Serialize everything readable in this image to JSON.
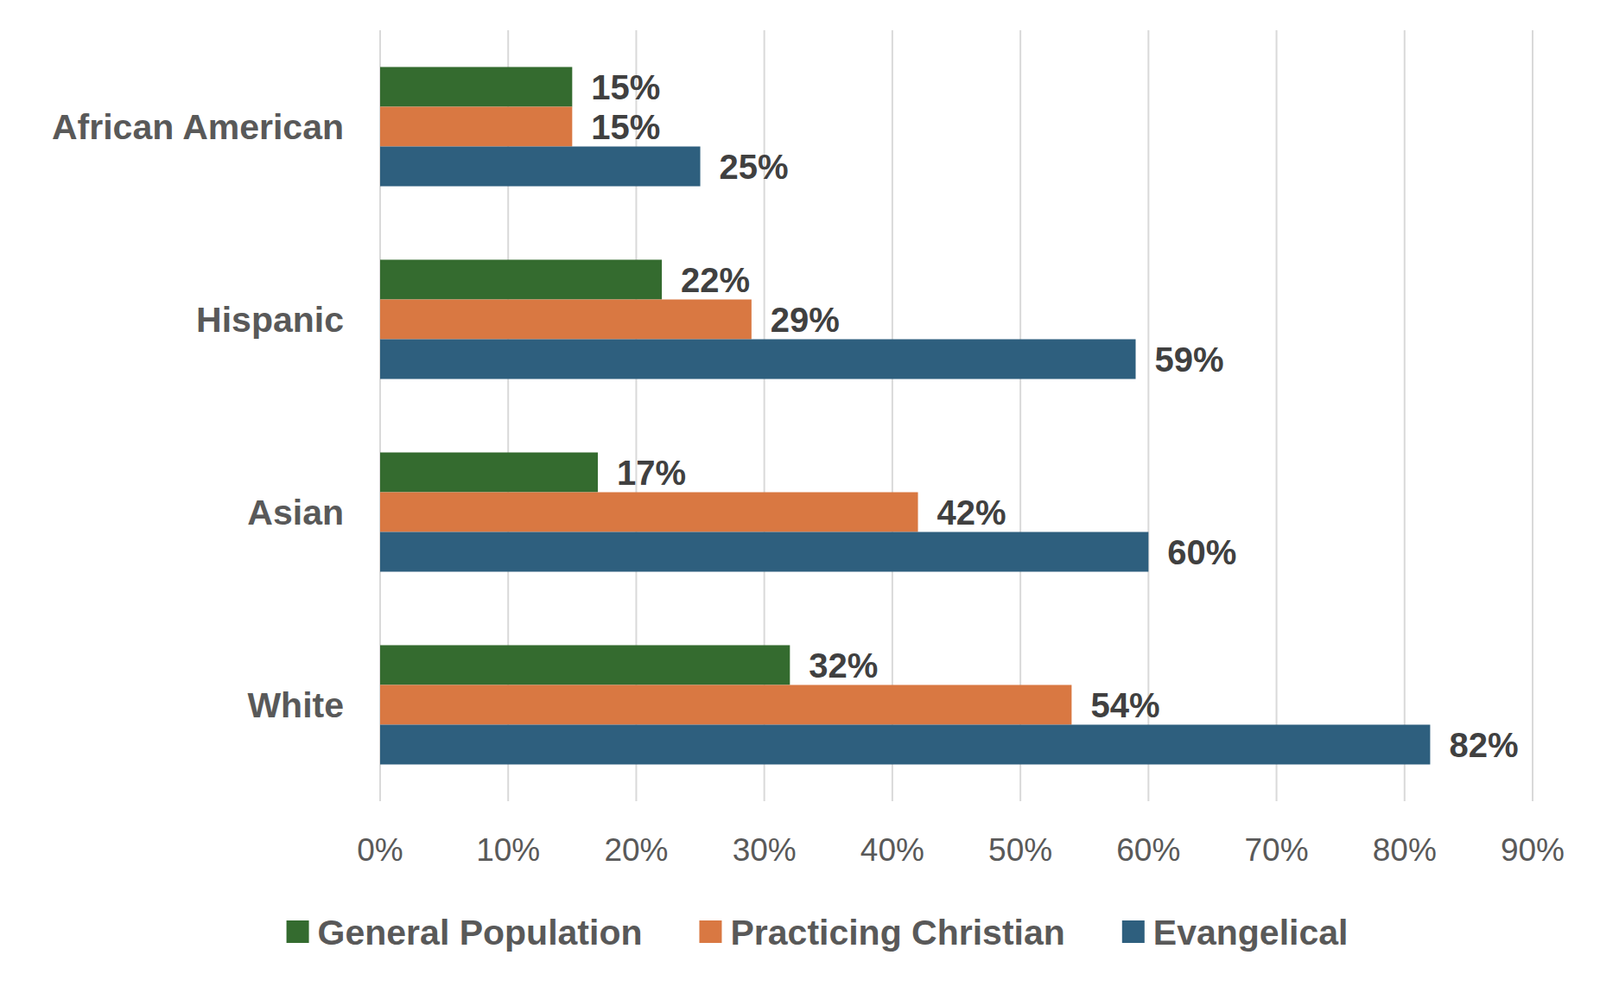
{
  "chart_data": {
    "type": "bar",
    "orientation": "horizontal",
    "categories": [
      "African American",
      "Hispanic",
      "Asian",
      "White"
    ],
    "series": [
      {
        "name": "General Population",
        "color": "#346b2f",
        "values": [
          15,
          22,
          17,
          32
        ],
        "value_labels": [
          "15%",
          "22%",
          "17%",
          "32%"
        ]
      },
      {
        "name": "Practicing Christian",
        "color": "#d97842",
        "values": [
          15,
          29,
          42,
          54
        ],
        "value_labels": [
          "15%",
          "29%",
          "42%",
          "54%"
        ]
      },
      {
        "name": "Evangelical",
        "color": "#2e5f7e",
        "values": [
          25,
          59,
          60,
          82
        ],
        "value_labels": [
          "25%",
          "59%",
          "60%",
          "82%"
        ]
      }
    ],
    "xlim": [
      0,
      90
    ],
    "xticks": [
      {
        "value": 0,
        "label": "0%"
      },
      {
        "value": 10,
        "label": "10%"
      },
      {
        "value": 20,
        "label": "20%"
      },
      {
        "value": 30,
        "label": "30%"
      },
      {
        "value": 40,
        "label": "40%"
      },
      {
        "value": 50,
        "label": "50%"
      },
      {
        "value": 60,
        "label": "60%"
      },
      {
        "value": 70,
        "label": "70%"
      },
      {
        "value": 80,
        "label": "80%"
      },
      {
        "value": 90,
        "label": "90%"
      }
    ],
    "grid": true,
    "legend": "bottom",
    "data_labels": true
  }
}
